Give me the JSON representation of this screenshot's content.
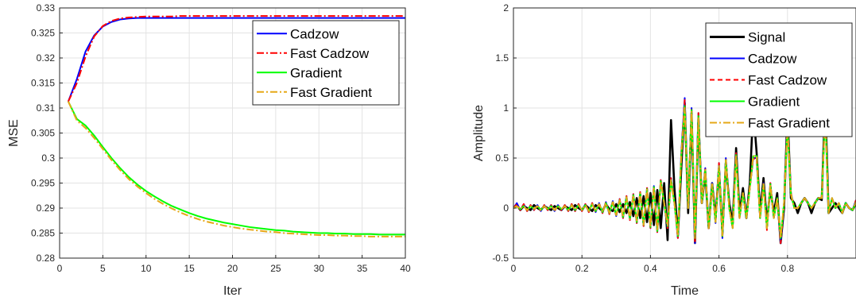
{
  "chart_data": [
    {
      "type": "line",
      "title": "",
      "xlabel": "Iter",
      "ylabel": "MSE",
      "xlim": [
        0,
        40
      ],
      "ylim": [
        0.28,
        0.33
      ],
      "xticks": [
        0,
        5,
        10,
        15,
        20,
        25,
        30,
        35,
        40
      ],
      "yticks": [
        0.28,
        0.285,
        0.29,
        0.295,
        0.3,
        0.305,
        0.31,
        0.315,
        0.32,
        0.325,
        0.33
      ],
      "ytick_labels": [
        "0.28",
        "0.285",
        "0.29",
        "0.295",
        "0.3",
        "0.305",
        "0.31",
        "0.315",
        "0.32",
        "0.325",
        "0.33"
      ],
      "grid": true,
      "legend_position": "top-right",
      "x": [
        1,
        2,
        3,
        4,
        5,
        6,
        7,
        8,
        9,
        10,
        11,
        12,
        13,
        14,
        15,
        16,
        17,
        18,
        19,
        20,
        21,
        22,
        23,
        24,
        25,
        26,
        27,
        28,
        29,
        30,
        31,
        32,
        33,
        34,
        35,
        36,
        37,
        38,
        39,
        40
      ],
      "series": [
        {
          "name": "Cadzow",
          "color": "#0000ff",
          "dash": "solid",
          "values": [
            0.3113,
            0.3158,
            0.3213,
            0.3245,
            0.3263,
            0.3272,
            0.3277,
            0.3279,
            0.328,
            0.328,
            0.328,
            0.328,
            0.328,
            0.328,
            0.328,
            0.328,
            0.328,
            0.328,
            0.328,
            0.328,
            0.328,
            0.328,
            0.328,
            0.328,
            0.328,
            0.328,
            0.328,
            0.328,
            0.328,
            0.328,
            0.328,
            0.328,
            0.328,
            0.328,
            0.328,
            0.328,
            0.328,
            0.328,
            0.328,
            0.328
          ]
        },
        {
          "name": "Fast Cadzow",
          "color": "#ff0000",
          "dash": "dashdot",
          "values": [
            0.3113,
            0.315,
            0.3203,
            0.3243,
            0.3264,
            0.3274,
            0.3279,
            0.3281,
            0.3282,
            0.3283,
            0.3283,
            0.3283,
            0.3283,
            0.3284,
            0.3284,
            0.3284,
            0.3284,
            0.3284,
            0.3284,
            0.3284,
            0.3284,
            0.3284,
            0.3284,
            0.3284,
            0.3284,
            0.3284,
            0.3284,
            0.3284,
            0.3284,
            0.3284,
            0.3284,
            0.3284,
            0.3284,
            0.3284,
            0.3284,
            0.3284,
            0.3284,
            0.3284,
            0.3284,
            0.3284
          ]
        },
        {
          "name": "Gradient",
          "color": "#00ff00",
          "dash": "solid",
          "values": [
            0.3113,
            0.3078,
            0.3065,
            0.3045,
            0.3022,
            0.3,
            0.298,
            0.2962,
            0.2947,
            0.2934,
            0.2923,
            0.2913,
            0.2904,
            0.2897,
            0.289,
            0.2884,
            0.2879,
            0.2875,
            0.2871,
            0.2868,
            0.2865,
            0.2862,
            0.286,
            0.2858,
            0.2856,
            0.2855,
            0.2853,
            0.2852,
            0.2851,
            0.285,
            0.285,
            0.2849,
            0.2849,
            0.2848,
            0.2848,
            0.2848,
            0.2847,
            0.2847,
            0.2847,
            0.2847
          ]
        },
        {
          "name": "Fast Gradient",
          "color": "#e6a817",
          "dash": "dashdot",
          "values": [
            0.3113,
            0.3075,
            0.306,
            0.304,
            0.3018,
            0.2996,
            0.2976,
            0.2958,
            0.2943,
            0.293,
            0.2918,
            0.2908,
            0.2899,
            0.2891,
            0.2884,
            0.2878,
            0.2873,
            0.2869,
            0.2865,
            0.2862,
            0.2859,
            0.2857,
            0.2855,
            0.2853,
            0.2852,
            0.285,
            0.2849,
            0.2848,
            0.2847,
            0.2846,
            0.2846,
            0.2845,
            0.2845,
            0.2844,
            0.2844,
            0.2843,
            0.2843,
            0.2843,
            0.2843,
            0.2843
          ]
        }
      ]
    },
    {
      "type": "line",
      "title": "",
      "xlabel": "Time",
      "ylabel": "Amplitude",
      "xlim": [
        0,
        1
      ],
      "ylim": [
        -0.5,
        2
      ],
      "xticks": [
        0,
        0.2,
        0.4,
        0.6,
        0.8
      ],
      "xtick_labels": [
        "0",
        "0.2",
        "0.4",
        "0.6",
        "0.8"
      ],
      "yticks": [
        -0.5,
        0,
        0.5,
        1,
        1.5,
        2
      ],
      "ytick_labels": [
        "-0.5",
        "0",
        "0.5",
        "1",
        "1.5",
        "2"
      ],
      "grid": true,
      "legend_position": "top-right",
      "x": [
        0,
        0.01,
        0.02,
        0.03,
        0.04,
        0.05,
        0.06,
        0.07,
        0.08,
        0.09,
        0.1,
        0.11,
        0.12,
        0.13,
        0.14,
        0.15,
        0.16,
        0.17,
        0.18,
        0.19,
        0.2,
        0.21,
        0.22,
        0.23,
        0.24,
        0.25,
        0.26,
        0.27,
        0.28,
        0.29,
        0.3,
        0.31,
        0.32,
        0.33,
        0.34,
        0.35,
        0.36,
        0.37,
        0.38,
        0.39,
        0.4,
        0.41,
        0.42,
        0.43,
        0.44,
        0.45,
        0.46,
        0.47,
        0.48,
        0.49,
        0.5,
        0.51,
        0.52,
        0.53,
        0.54,
        0.55,
        0.56,
        0.57,
        0.58,
        0.59,
        0.6,
        0.61,
        0.62,
        0.63,
        0.64,
        0.65,
        0.66,
        0.67,
        0.68,
        0.69,
        0.7,
        0.71,
        0.72,
        0.73,
        0.74,
        0.75,
        0.76,
        0.77,
        0.78,
        0.79,
        0.8,
        0.81,
        0.82,
        0.83,
        0.84,
        0.85,
        0.86,
        0.87,
        0.88,
        0.89,
        0.9,
        0.91,
        0.92,
        0.93,
        0.94,
        0.95,
        0.96,
        0.97,
        0.98,
        0.99,
        1.0
      ],
      "series": [
        {
          "name": "Signal",
          "color": "#000000",
          "dash": "solid",
          "values": [
            0,
            0.03,
            -0.02,
            0.02,
            0,
            -0.02,
            0.03,
            0,
            -0.02,
            0.02,
            0,
            -0.02,
            0.02,
            0,
            -0.02,
            0.02,
            0,
            -0.02,
            0.03,
            0,
            -0.02,
            0.03,
            0,
            -0.03,
            0.03,
            0,
            -0.03,
            0.04,
            -0.01,
            -0.03,
            0.04,
            -0.04,
            0.04,
            -0.05,
            0.06,
            -0.08,
            0.1,
            -0.1,
            0.12,
            -0.14,
            0.15,
            -0.17,
            0.18,
            -0.2,
            0.25,
            -0.32,
            0.88,
            0.2,
            -0.28,
            0.4,
            1.05,
            -0.05,
            0.95,
            -0.35,
            0.9,
            0.05,
            0.35,
            -0.2,
            0.25,
            -0.1,
            0.4,
            -0.25,
            0.45,
            0.05,
            -0.15,
            0.6,
            -0.05,
            0.2,
            -0.1,
            0.25,
            1.0,
            0.55,
            -0.05,
            0.3,
            -0.15,
            0.2,
            -0.05,
            0.15,
            -0.35,
            0.0,
            0.95,
            0.1,
            0.05,
            -0.05,
            0.05,
            0.1,
            0.05,
            -0.05,
            0.05,
            0.1,
            0.08,
            1.1,
            -0.05,
            0.0,
            0.05,
            0.0,
            -0.05,
            0.05,
            0.0,
            -0.02,
            0.05
          ]
        },
        {
          "name": "Cadzow",
          "color": "#0000ff",
          "dash": "solid",
          "values": [
            0,
            0.05,
            -0.02,
            0.04,
            -0.03,
            0.03,
            -0.02,
            0.03,
            -0.03,
            0.03,
            -0.02,
            0.03,
            -0.03,
            0.03,
            -0.02,
            0.03,
            -0.03,
            0.04,
            -0.03,
            0.04,
            -0.03,
            0.04,
            -0.04,
            0.05,
            -0.04,
            0.05,
            -0.05,
            0.06,
            -0.06,
            0.07,
            -0.08,
            0.09,
            -0.1,
            0.12,
            -0.12,
            0.14,
            -0.15,
            0.16,
            -0.18,
            0.2,
            -0.2,
            0.22,
            -0.24,
            0.28,
            0.05,
            -0.2,
            0.3,
            0.05,
            -0.3,
            0.55,
            1.1,
            0.0,
            1.0,
            -0.35,
            0.95,
            0.05,
            0.4,
            -0.2,
            0.25,
            -0.15,
            0.45,
            -0.3,
            0.5,
            0.0,
            -0.2,
            0.55,
            -0.1,
            0.15,
            -0.1,
            0.2,
            0.5,
            0.5,
            -0.1,
            0.25,
            -0.2,
            0.25,
            -0.1,
            0.1,
            -0.35,
            0.05,
            0.85,
            0.15,
            0.0,
            0.0,
            0.05,
            0.1,
            0.05,
            0.0,
            0.05,
            0.1,
            0.1,
            1.0,
            -0.05,
            0.1,
            0.0,
            0.05,
            -0.05,
            0.05,
            0.0,
            -0.02,
            0.08
          ]
        },
        {
          "name": "Fast Cadzow",
          "color": "#ff0000",
          "dash": "dashed",
          "values": [
            0,
            0.04,
            -0.02,
            0.04,
            -0.03,
            0.03,
            -0.02,
            0.03,
            -0.03,
            0.03,
            -0.02,
            0.03,
            -0.03,
            0.03,
            -0.02,
            0.03,
            -0.03,
            0.04,
            -0.03,
            0.04,
            -0.03,
            0.04,
            -0.04,
            0.05,
            -0.04,
            0.05,
            -0.05,
            0.06,
            -0.06,
            0.07,
            -0.08,
            0.09,
            -0.1,
            0.12,
            -0.12,
            0.14,
            -0.15,
            0.16,
            -0.18,
            0.2,
            -0.2,
            0.22,
            -0.24,
            0.28,
            0.05,
            -0.2,
            0.3,
            0.05,
            -0.3,
            0.55,
            1.08,
            0.0,
            1.0,
            -0.35,
            0.95,
            0.05,
            0.4,
            -0.22,
            0.25,
            -0.15,
            0.45,
            -0.3,
            0.5,
            0.0,
            -0.2,
            0.55,
            -0.1,
            0.15,
            -0.1,
            0.2,
            0.5,
            0.48,
            -0.1,
            0.25,
            -0.22,
            0.25,
            -0.1,
            0.1,
            -0.35,
            0.05,
            0.85,
            0.15,
            0.0,
            0.0,
            0.05,
            0.1,
            0.05,
            0.0,
            0.05,
            0.1,
            0.1,
            1.0,
            -0.05,
            0.1,
            0.0,
            0.05,
            -0.05,
            0.05,
            0.0,
            -0.02,
            0.08
          ]
        },
        {
          "name": "Gradient",
          "color": "#00ff00",
          "dash": "solid",
          "values": [
            0,
            0.02,
            -0.01,
            0.02,
            -0.02,
            0.02,
            -0.01,
            0.02,
            -0.02,
            0.02,
            -0.01,
            0.02,
            -0.02,
            0.02,
            -0.01,
            0.02,
            -0.02,
            0.03,
            -0.02,
            0.03,
            -0.02,
            0.03,
            -0.03,
            0.04,
            -0.03,
            0.04,
            -0.04,
            0.05,
            -0.05,
            0.06,
            -0.07,
            0.08,
            -0.09,
            0.11,
            -0.11,
            0.13,
            -0.14,
            0.15,
            -0.17,
            0.19,
            -0.19,
            0.21,
            -0.23,
            0.27,
            0.05,
            -0.18,
            0.28,
            0.05,
            -0.28,
            0.52,
            1.02,
            0.0,
            0.98,
            -0.3,
            0.92,
            0.05,
            0.38,
            -0.2,
            0.24,
            -0.14,
            0.42,
            -0.28,
            0.48,
            0.0,
            -0.2,
            0.53,
            -0.1,
            0.15,
            -0.1,
            0.2,
            0.52,
            0.52,
            -0.1,
            0.24,
            -0.2,
            0.24,
            -0.1,
            0.1,
            -0.3,
            0.05,
            0.82,
            0.14,
            0.0,
            0.0,
            0.05,
            0.1,
            0.05,
            0.0,
            0.05,
            0.1,
            0.1,
            0.96,
            -0.05,
            0.1,
            0.0,
            0.05,
            -0.05,
            0.05,
            0.0,
            -0.02,
            0.06
          ]
        },
        {
          "name": "Fast Gradient",
          "color": "#e6a817",
          "dash": "dashdot",
          "values": [
            0,
            0.02,
            -0.01,
            0.02,
            -0.02,
            0.02,
            -0.01,
            0.02,
            -0.02,
            0.02,
            -0.01,
            0.02,
            -0.02,
            0.02,
            -0.01,
            0.02,
            -0.02,
            0.03,
            -0.02,
            0.03,
            -0.02,
            0.03,
            -0.03,
            0.04,
            -0.03,
            0.04,
            -0.04,
            0.05,
            -0.05,
            0.06,
            -0.07,
            0.08,
            -0.09,
            0.11,
            -0.11,
            0.13,
            -0.14,
            0.15,
            -0.17,
            0.19,
            -0.19,
            0.21,
            -0.23,
            0.27,
            0.05,
            -0.18,
            0.28,
            0.05,
            -0.28,
            0.52,
            1.0,
            0.0,
            0.97,
            -0.3,
            0.9,
            0.05,
            0.38,
            -0.2,
            0.24,
            -0.14,
            0.42,
            -0.28,
            0.48,
            0.0,
            -0.2,
            0.53,
            -0.1,
            0.15,
            -0.1,
            0.2,
            0.52,
            0.52,
            -0.1,
            0.24,
            -0.2,
            0.24,
            -0.1,
            0.1,
            -0.3,
            0.05,
            0.82,
            0.14,
            0.0,
            0.0,
            0.05,
            0.1,
            0.05,
            0.0,
            0.05,
            0.1,
            0.1,
            0.95,
            -0.05,
            0.1,
            0.0,
            0.05,
            -0.05,
            0.05,
            0.0,
            -0.02,
            0.06
          ]
        }
      ]
    }
  ]
}
